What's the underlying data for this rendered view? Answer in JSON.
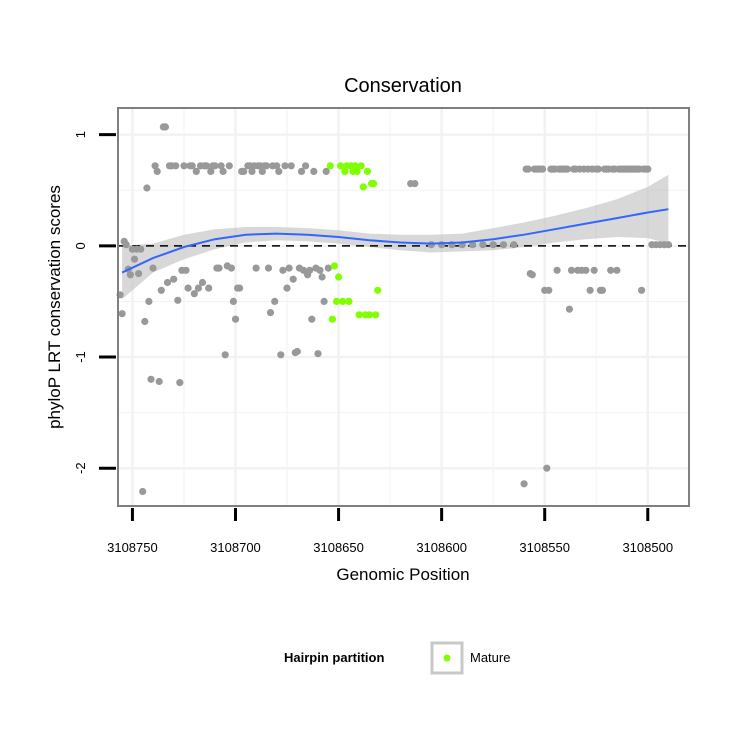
{
  "chart_data": {
    "type": "scatter",
    "title": "Conservation",
    "xlabel": "Genomic Position",
    "ylabel": "phyloP LRT conservation scores",
    "xlim": [
      3108757,
      3108480
    ],
    "ylim": [
      -2.34,
      1.24
    ],
    "x_ticks": [
      3108750,
      3108700,
      3108650,
      3108600,
      3108550,
      3108500
    ],
    "x_tick_labels": [
      "3108750",
      "3108700",
      "3108650",
      "3108600",
      "3108550",
      "3108500"
    ],
    "y_ticks": [
      -2,
      -1,
      0,
      1
    ],
    "y_tick_labels": [
      "-2",
      "-1",
      "0",
      "1"
    ],
    "reference_line": {
      "y": 0,
      "style": "dashed"
    },
    "colors": {
      "hairpin": "#999999",
      "mature": "#7FFF00",
      "smooth": "#3366FF",
      "ribbon": "#BEBEBE",
      "grid": "#F2F2F2",
      "frame": "#7F7F7F"
    },
    "legend": {
      "title": "Hairpin partition",
      "entries": [
        "Mature"
      ]
    },
    "series": [
      {
        "name": "Hairpin",
        "points": [
          [
            3108756,
            -0.44
          ],
          [
            3108755,
            -0.61
          ],
          [
            3108754,
            0.04
          ],
          [
            3108753,
            0.01
          ],
          [
            3108752,
            -0.21
          ],
          [
            3108751,
            -0.26
          ],
          [
            3108750,
            -0.03
          ],
          [
            3108749,
            -0.12
          ],
          [
            3108748,
            -0.03
          ],
          [
            3108747,
            -0.25
          ],
          [
            3108746,
            -0.03
          ],
          [
            3108745,
            -2.21
          ],
          [
            3108744,
            -0.68
          ],
          [
            3108743,
            0.52
          ],
          [
            3108742,
            -0.5
          ],
          [
            3108741,
            -1.2
          ],
          [
            3108740,
            -0.2
          ],
          [
            3108739,
            0.72
          ],
          [
            3108738,
            0.67
          ],
          [
            3108737,
            -1.22
          ],
          [
            3108736,
            -0.4
          ],
          [
            3108735,
            1.07
          ],
          [
            3108734,
            1.07
          ],
          [
            3108733,
            -0.33
          ],
          [
            3108732,
            0.72
          ],
          [
            3108731,
            0.72
          ],
          [
            3108730,
            -0.3
          ],
          [
            3108729,
            0.72
          ],
          [
            3108728,
            -0.49
          ],
          [
            3108727,
            -1.23
          ],
          [
            3108726,
            -0.22
          ],
          [
            3108725,
            0.72
          ],
          [
            3108724,
            -0.22
          ],
          [
            3108723,
            -0.38
          ],
          [
            3108722,
            0.72
          ],
          [
            3108721,
            0.72
          ],
          [
            3108720,
            -0.43
          ],
          [
            3108719,
            0.67
          ],
          [
            3108718,
            -0.38
          ],
          [
            3108717,
            0.72
          ],
          [
            3108716,
            -0.33
          ],
          [
            3108715,
            0.72
          ],
          [
            3108714,
            0.72
          ],
          [
            3108713,
            -0.38
          ],
          [
            3108712,
            0.67
          ],
          [
            3108711,
            0.72
          ],
          [
            3108710,
            0.72
          ],
          [
            3108709,
            -0.2
          ],
          [
            3108708,
            -0.2
          ],
          [
            3108707,
            0.72
          ],
          [
            3108706,
            0.67
          ],
          [
            3108705,
            -0.98
          ],
          [
            3108704,
            -0.18
          ],
          [
            3108703,
            0.72
          ],
          [
            3108702,
            -0.2
          ],
          [
            3108701,
            -0.5
          ],
          [
            3108700,
            -0.66
          ],
          [
            3108699,
            -0.38
          ],
          [
            3108698,
            -0.38
          ],
          [
            3108697,
            0.67
          ],
          [
            3108696,
            0.67
          ],
          [
            3108694,
            0.72
          ],
          [
            3108693,
            0.72
          ],
          [
            3108692,
            0.67
          ],
          [
            3108691,
            0.72
          ],
          [
            3108690,
            -0.2
          ],
          [
            3108689,
            0.72
          ],
          [
            3108688,
            0.72
          ],
          [
            3108687,
            0.67
          ],
          [
            3108686,
            0.72
          ],
          [
            3108685,
            0.72
          ],
          [
            3108684,
            -0.2
          ],
          [
            3108683,
            -0.6
          ],
          [
            3108682,
            0.72
          ],
          [
            3108681,
            -0.5
          ],
          [
            3108680,
            0.72
          ],
          [
            3108679,
            0.67
          ],
          [
            3108678,
            -0.98
          ],
          [
            3108677,
            -0.22
          ],
          [
            3108676,
            0.72
          ],
          [
            3108675,
            -0.38
          ],
          [
            3108674,
            -0.2
          ],
          [
            3108673,
            0.72
          ],
          [
            3108672,
            -0.3
          ],
          [
            3108671,
            -0.96
          ],
          [
            3108670,
            -0.95
          ],
          [
            3108669,
            -0.2
          ],
          [
            3108668,
            0.67
          ],
          [
            3108667,
            -0.22
          ],
          [
            3108666,
            0.72
          ],
          [
            3108665,
            -0.26
          ],
          [
            3108664,
            -0.22
          ],
          [
            3108663,
            -0.66
          ],
          [
            3108662,
            0.67
          ],
          [
            3108661,
            -0.2
          ],
          [
            3108660,
            -0.97
          ],
          [
            3108659,
            -0.22
          ],
          [
            3108658,
            -0.28
          ],
          [
            3108657,
            -0.5
          ],
          [
            3108656,
            0.67
          ],
          [
            3108655,
            -0.2
          ],
          [
            3108615,
            0.56
          ],
          [
            3108613,
            0.56
          ],
          [
            3108605,
            0.01
          ],
          [
            3108600,
            0.01
          ],
          [
            3108595,
            0.01
          ],
          [
            3108590,
            0.01
          ],
          [
            3108585,
            0.01
          ],
          [
            3108580,
            0.01
          ],
          [
            3108575,
            0.01
          ],
          [
            3108570,
            0.01
          ],
          [
            3108565,
            0.01
          ],
          [
            3108560,
            -2.14
          ],
          [
            3108559,
            0.69
          ],
          [
            3108558,
            0.69
          ],
          [
            3108557,
            -0.25
          ],
          [
            3108556,
            -0.26
          ],
          [
            3108555,
            0.69
          ],
          [
            3108554,
            0.69
          ],
          [
            3108553,
            0.69
          ],
          [
            3108552,
            0.69
          ],
          [
            3108551,
            0.69
          ],
          [
            3108550,
            -0.4
          ],
          [
            3108549,
            -2.0
          ],
          [
            3108548,
            -0.4
          ],
          [
            3108547,
            0.69
          ],
          [
            3108546,
            0.69
          ],
          [
            3108545,
            0.69
          ],
          [
            3108544,
            -0.22
          ],
          [
            3108543,
            0.69
          ],
          [
            3108542,
            0.69
          ],
          [
            3108541,
            0.69
          ],
          [
            3108540,
            0.69
          ],
          [
            3108539,
            0.69
          ],
          [
            3108538,
            -0.57
          ],
          [
            3108537,
            -0.22
          ],
          [
            3108536,
            0.69
          ],
          [
            3108535,
            0.69
          ],
          [
            3108534,
            -0.22
          ],
          [
            3108533,
            0.69
          ],
          [
            3108532,
            -0.22
          ],
          [
            3108531,
            0.69
          ],
          [
            3108530,
            -0.22
          ],
          [
            3108529,
            0.69
          ],
          [
            3108528,
            -0.4
          ],
          [
            3108527,
            0.69
          ],
          [
            3108526,
            -0.22
          ],
          [
            3108525,
            0.69
          ],
          [
            3108524,
            0.69
          ],
          [
            3108523,
            -0.4
          ],
          [
            3108522,
            -0.4
          ],
          [
            3108521,
            0.69
          ],
          [
            3108520,
            0.69
          ],
          [
            3108519,
            0.69
          ],
          [
            3108518,
            -0.22
          ],
          [
            3108517,
            0.69
          ],
          [
            3108516,
            0.69
          ],
          [
            3108515,
            -0.22
          ],
          [
            3108514,
            0.69
          ],
          [
            3108513,
            0.69
          ],
          [
            3108512,
            0.69
          ],
          [
            3108511,
            0.69
          ],
          [
            3108510,
            0.69
          ],
          [
            3108509,
            0.69
          ],
          [
            3108508,
            0.69
          ],
          [
            3108507,
            0.69
          ],
          [
            3108506,
            0.69
          ],
          [
            3108505,
            0.69
          ],
          [
            3108504,
            0.69
          ],
          [
            3108503,
            -0.4
          ],
          [
            3108502,
            0.69
          ],
          [
            3108501,
            0.69
          ],
          [
            3108500,
            0.69
          ],
          [
            3108498,
            0.01
          ],
          [
            3108496,
            0.01
          ],
          [
            3108494,
            0.01
          ],
          [
            3108492,
            0.01
          ],
          [
            3108490,
            0.01
          ]
        ]
      },
      {
        "name": "Mature",
        "points": [
          [
            3108654,
            0.72
          ],
          [
            3108653,
            -0.66
          ],
          [
            3108652,
            -0.18
          ],
          [
            3108651,
            -0.5
          ],
          [
            3108650,
            -0.28
          ],
          [
            3108649,
            0.72
          ],
          [
            3108648,
            -0.5
          ],
          [
            3108647,
            0.67
          ],
          [
            3108646,
            0.72
          ],
          [
            3108645,
            -0.5
          ],
          [
            3108644,
            0.72
          ],
          [
            3108643,
            0.67
          ],
          [
            3108642,
            0.72
          ],
          [
            3108641,
            0.67
          ],
          [
            3108640,
            -0.62
          ],
          [
            3108639,
            0.72
          ],
          [
            3108638,
            0.53
          ],
          [
            3108637,
            -0.62
          ],
          [
            3108636,
            0.67
          ],
          [
            3108635,
            -0.62
          ],
          [
            3108634,
            0.56
          ],
          [
            3108633,
            0.56
          ],
          [
            3108632,
            -0.62
          ],
          [
            3108631,
            -0.4
          ]
        ]
      }
    ],
    "smooth_line": {
      "x": [
        3108755,
        3108740,
        3108725,
        3108710,
        3108695,
        3108680,
        3108665,
        3108650,
        3108635,
        3108620,
        3108605,
        3108590,
        3108575,
        3108560,
        3108545,
        3108530,
        3108515,
        3108500,
        3108490
      ],
      "y": [
        -0.24,
        -0.11,
        -0.01,
        0.06,
        0.1,
        0.11,
        0.1,
        0.08,
        0.05,
        0.03,
        0.02,
        0.03,
        0.06,
        0.1,
        0.15,
        0.2,
        0.25,
        0.3,
        0.33
      ],
      "ci_low": [
        -0.48,
        -0.24,
        -0.12,
        -0.03,
        0.03,
        0.05,
        0.04,
        0.02,
        -0.01,
        -0.04,
        -0.06,
        -0.05,
        -0.04,
        -0.01,
        0.03,
        0.06,
        0.08,
        0.07,
        0.02
      ],
      "ci_high": [
        0.0,
        0.02,
        0.1,
        0.15,
        0.17,
        0.17,
        0.16,
        0.14,
        0.11,
        0.1,
        0.1,
        0.11,
        0.16,
        0.21,
        0.27,
        0.34,
        0.42,
        0.53,
        0.64
      ]
    }
  }
}
